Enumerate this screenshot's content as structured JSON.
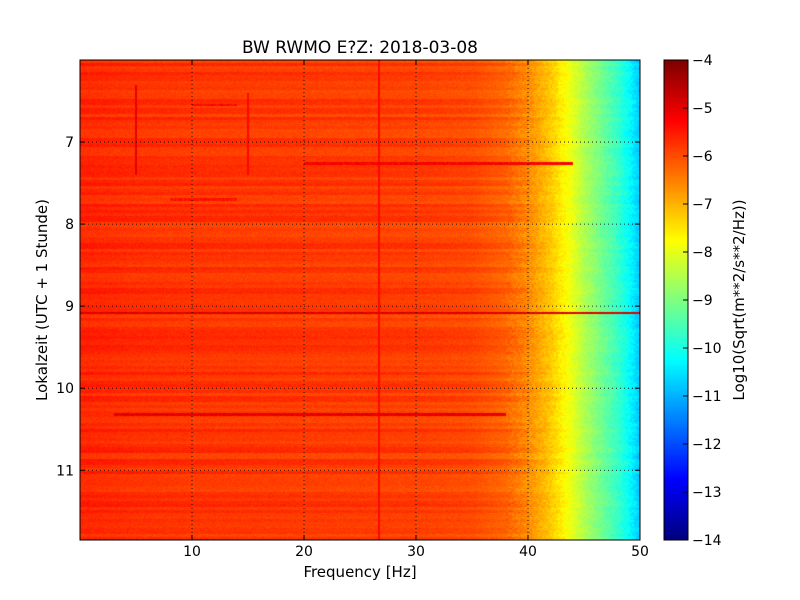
{
  "chart_data": {
    "type": "heatmap",
    "title": "BW RWMO E?Z: 2018-03-08",
    "xlabel": "Frequency [Hz]",
    "ylabel": "Lokalzeit (UTC + 1 Stunde)",
    "xlim": [
      0,
      50
    ],
    "ylim": [
      11.85,
      6.0
    ],
    "x_ticks": [
      10,
      20,
      30,
      40,
      50
    ],
    "x_tick_labels": [
      "10",
      "20",
      "30",
      "40",
      "50"
    ],
    "y_ticks": [
      7,
      8,
      9,
      10,
      11
    ],
    "y_tick_labels": [
      "7",
      "8",
      "9",
      "10",
      "11"
    ],
    "y_inverted": true,
    "grid": true,
    "colormap": "jet",
    "colorbar": {
      "label": "Log10(Sqrt(m**2/s**2/Hz))",
      "range": [
        -14,
        -4
      ],
      "ticks": [
        -4,
        -5,
        -6,
        -7,
        -8,
        -9,
        -10,
        -11,
        -12,
        -13,
        -14
      ],
      "tick_labels": [
        "−4",
        "−5",
        "−6",
        "−7",
        "−8",
        "−9",
        "−10",
        "−11",
        "−12",
        "−13",
        "−14"
      ]
    },
    "spectrum_profile": {
      "freq_hz": [
        0,
        5,
        10,
        20,
        30,
        35,
        38,
        40,
        41,
        42,
        43,
        44,
        45,
        46,
        47,
        48,
        49,
        50
      ],
      "level": [
        -5.6,
        -5.7,
        -5.75,
        -5.8,
        -5.85,
        -5.95,
        -6.2,
        -6.6,
        -6.9,
        -7.2,
        -7.6,
        -8.0,
        -8.5,
        -8.9,
        -9.3,
        -9.7,
        -10.2,
        -10.8
      ]
    },
    "features": [
      {
        "kind": "horizontal_band",
        "time": 9.08,
        "freq_range": [
          0,
          50
        ],
        "level": -4.9
      },
      {
        "kind": "horizontal_band",
        "time": 10.32,
        "freq_range": [
          3,
          38
        ],
        "level": -5.0
      },
      {
        "kind": "horizontal_band",
        "time": 7.26,
        "freq_range": [
          20,
          44
        ],
        "level": -5.2
      },
      {
        "kind": "horizontal_band",
        "time": 6.55,
        "freq_range": [
          10,
          14
        ],
        "level": -5.3
      },
      {
        "kind": "horizontal_band",
        "time": 7.7,
        "freq_range": [
          8,
          14
        ],
        "level": -5.4
      },
      {
        "kind": "vertical_line",
        "freq": 26.7,
        "time_range": [
          6.0,
          11.85
        ],
        "level": -5.3
      },
      {
        "kind": "vertical_line",
        "freq": 5.0,
        "time_range": [
          6.3,
          7.4
        ],
        "level": -5.0
      },
      {
        "kind": "vertical_line",
        "freq": 15.0,
        "time_range": [
          6.4,
          7.4
        ],
        "level": -5.3
      }
    ]
  }
}
